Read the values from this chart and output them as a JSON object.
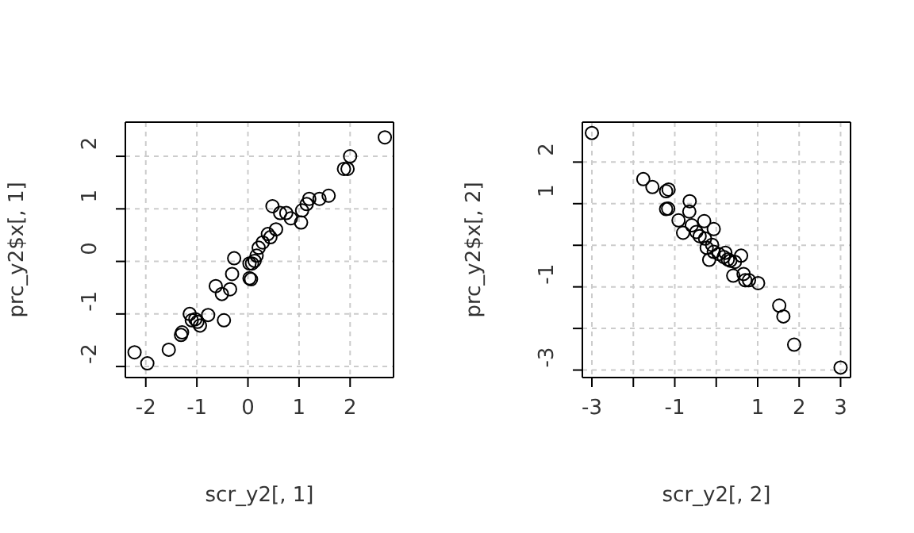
{
  "chart_data": [
    {
      "type": "scatter",
      "xlabel": "scr_y2[, 1]",
      "ylabel": "prc_y2$x[, 1]",
      "xlim": [
        -2.4,
        2.85
      ],
      "ylim": [
        -2.21,
        2.65
      ],
      "xticks": [
        -2,
        -1,
        0,
        1,
        2
      ],
      "yticks": [
        -2,
        -1,
        0,
        1,
        2
      ],
      "grid": true,
      "marker": "circle",
      "legend": false,
      "series": [
        {
          "color": "#000000",
          "x": [
            2.68,
            2.0,
            1.88,
            1.95,
            1.58,
            1.4,
            1.2,
            1.15,
            1.06,
            1.04,
            0.84,
            0.75,
            0.63,
            0.48,
            0.55,
            0.44,
            0.39,
            0.29,
            0.21,
            0.17,
            0.13,
            0.08,
            0.03,
            0.03,
            0.06,
            -0.27,
            -0.31,
            -0.63,
            -0.51,
            -0.35,
            -0.47,
            -0.78,
            -0.94,
            -0.99,
            -1.14,
            -1.1,
            -1.03,
            -1.29,
            -1.31,
            -1.55,
            -1.97,
            -2.22
          ],
          "values": [
            2.36,
            2.0,
            1.76,
            1.76,
            1.25,
            1.19,
            1.19,
            1.09,
            0.97,
            0.74,
            0.82,
            0.92,
            0.92,
            1.05,
            0.61,
            0.46,
            0.52,
            0.36,
            0.26,
            0.11,
            0.01,
            -0.04,
            -0.04,
            -0.32,
            -0.34,
            0.06,
            -0.24,
            -0.47,
            -0.62,
            -0.53,
            -1.12,
            -1.02,
            -1.22,
            -1.15,
            -1.0,
            -1.12,
            -1.1,
            -1.35,
            -1.4,
            -1.68,
            -1.94,
            -1.73
          ]
        }
      ]
    },
    {
      "type": "scatter",
      "xlabel": "scr_y2[, 2]",
      "ylabel": "prc_y2$x[, 2]",
      "xlim": [
        -3.23,
        3.24
      ],
      "ylim": [
        -3.18,
        2.96
      ],
      "xticks": [
        -3,
        {
          "value": -2,
          "label": null
        },
        -1,
        {
          "value": 0,
          "label": null
        },
        1,
        2,
        3
      ],
      "yticks": [
        -3,
        {
          "value": -2,
          "label": null
        },
        -1,
        {
          "value": 0,
          "label": null
        },
        1,
        2
      ],
      "grid": true,
      "marker": "circle",
      "legend": false,
      "series": [
        {
          "color": "#000000",
          "x": [
            -3.0,
            3.0,
            1.88,
            1.62,
            1.52,
            1.01,
            0.79,
            0.7,
            0.66,
            0.6,
            0.41,
            0.45,
            0.28,
            0.18,
            0.06,
            -0.06,
            -0.17,
            -0.23,
            -0.1,
            -0.27,
            -0.06,
            -0.29,
            -0.4,
            -0.48,
            -0.59,
            -0.8,
            -0.65,
            -0.64,
            -0.91,
            -1.16,
            -1.21,
            -1.15,
            -1.21,
            -1.54,
            -1.76,
            0.22,
            0.34
          ],
          "values": [
            2.7,
            -2.94,
            -2.39,
            -1.71,
            -1.45,
            -0.91,
            -0.84,
            -0.84,
            -0.69,
            -0.25,
            -0.73,
            -0.4,
            -0.34,
            -0.28,
            -0.21,
            -0.16,
            -0.35,
            -0.06,
            0.01,
            0.16,
            0.39,
            0.58,
            0.22,
            0.32,
            0.48,
            0.3,
            0.81,
            1.06,
            0.6,
            0.88,
            0.87,
            1.34,
            1.3,
            1.4,
            1.59,
            -0.18,
            -0.37
          ]
        }
      ]
    }
  ]
}
